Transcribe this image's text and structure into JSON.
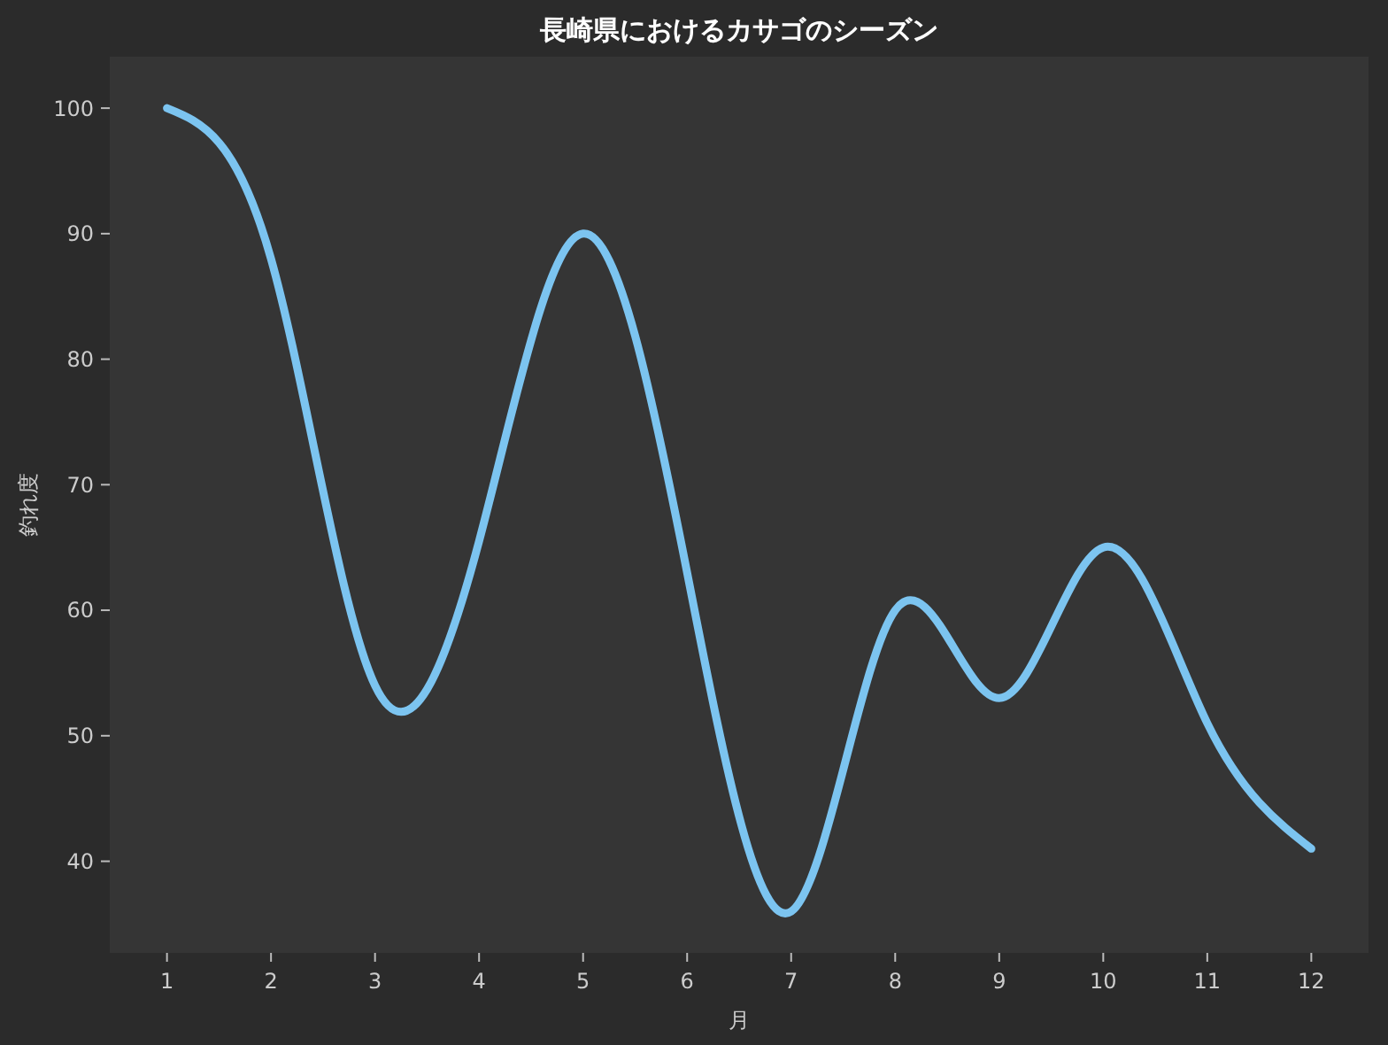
{
  "chart_data": {
    "type": "line",
    "title": "長崎県におけるカサゴのシーズン",
    "xlabel": "月",
    "ylabel": "釣れ度",
    "x": [
      1,
      2,
      3,
      4,
      5,
      6,
      7,
      8,
      9,
      10,
      11,
      12
    ],
    "series": [
      {
        "color": "#7cc4f0",
        "values": [
          100,
          88,
          54,
          65.5,
          90,
          63,
          36,
          60,
          53,
          65,
          51,
          41
        ]
      }
    ],
    "xlim": [
      0.45,
      12.55
    ],
    "ylim": [
      32.7,
      104.1
    ],
    "xticks": [
      1,
      2,
      3,
      4,
      5,
      6,
      7,
      8,
      9,
      10,
      11,
      12
    ],
    "yticks": [
      40,
      50,
      60,
      70,
      80,
      90,
      100
    ],
    "grid": false,
    "marker": "none",
    "line_style": "solid"
  }
}
